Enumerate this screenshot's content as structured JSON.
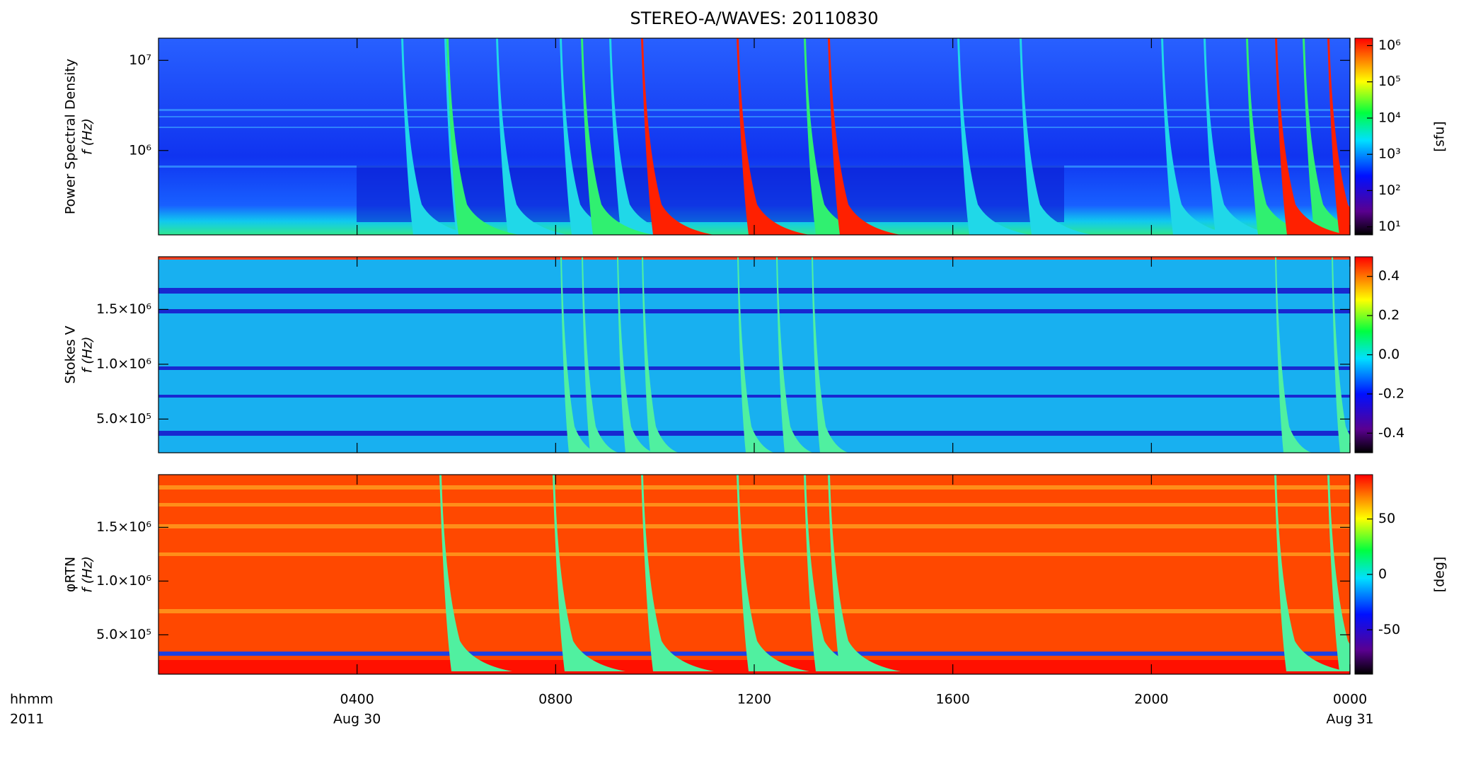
{
  "chart_data": [
    {
      "type": "spectrogram",
      "title": "STEREO-A/WAVES: 20110830",
      "ylabel": "Power Spectral Density",
      "ylabel2": "f (Hz)",
      "ylog": true,
      "ylim": [
        116000,
        17600000
      ],
      "yticks": [
        {
          "value": 1000000,
          "label": "10⁶"
        },
        {
          "value": 10000000,
          "label": "10⁷"
        }
      ],
      "clog": true,
      "clim": [
        6,
        1600000
      ],
      "cticks": [
        {
          "value": 10,
          "label": "10¹"
        },
        {
          "value": 100,
          "label": "10²"
        },
        {
          "value": 1000,
          "label": "10³"
        },
        {
          "value": 10000,
          "label": "10⁴"
        },
        {
          "value": 100000,
          "label": "10⁵"
        },
        {
          "value": 1000000,
          "label": "10⁶"
        }
      ],
      "clabel": "[sfu]"
    },
    {
      "type": "spectrogram",
      "ylabel": "Stokes V",
      "ylabel2": "f (Hz)",
      "ylog": false,
      "ylim": [
        193000,
        1980000
      ],
      "yticks": [
        {
          "value": 500000,
          "label": "5.0×10⁵"
        },
        {
          "value": 1000000,
          "label": "1.0×10⁶"
        },
        {
          "value": 1500000,
          "label": "1.5×10⁶"
        }
      ],
      "clog": false,
      "clim": [
        -0.5,
        0.5
      ],
      "cticks": [
        -0.4,
        -0.2,
        {
          "value": 0,
          "label": "0.0"
        },
        0.2,
        0.4
      ]
    },
    {
      "type": "spectrogram",
      "ylabel": "φRTN",
      "ylabel2": "f (Hz)",
      "ylog": false,
      "ylim": [
        134000,
        1990000
      ],
      "yticks": [
        {
          "value": 500000,
          "label": "5.0×10⁵"
        },
        {
          "value": 1000000,
          "label": "1.0×10⁶"
        },
        {
          "value": 1500000,
          "label": "1.5×10⁶"
        }
      ],
      "clog": false,
      "clim": [
        -90,
        90
      ],
      "cticks": [
        -50,
        0,
        50
      ],
      "clabel": "[deg]",
      "xlim": [
        0,
        24
      ],
      "xticks": [
        {
          "value": 4,
          "label": "0400"
        },
        {
          "value": 8,
          "label": "0800"
        },
        {
          "value": 12,
          "label": "1200"
        },
        {
          "value": 16,
          "label": "1600"
        },
        {
          "value": 20,
          "label": "2000"
        },
        {
          "value": 24,
          "label": "0000"
        }
      ],
      "date_labels": [
        {
          "value": 4,
          "label": "Aug 30"
        },
        {
          "value": 24,
          "label": "Aug 31"
        }
      ],
      "xlabel": "hhmm",
      "xlabel2": "2011"
    }
  ]
}
